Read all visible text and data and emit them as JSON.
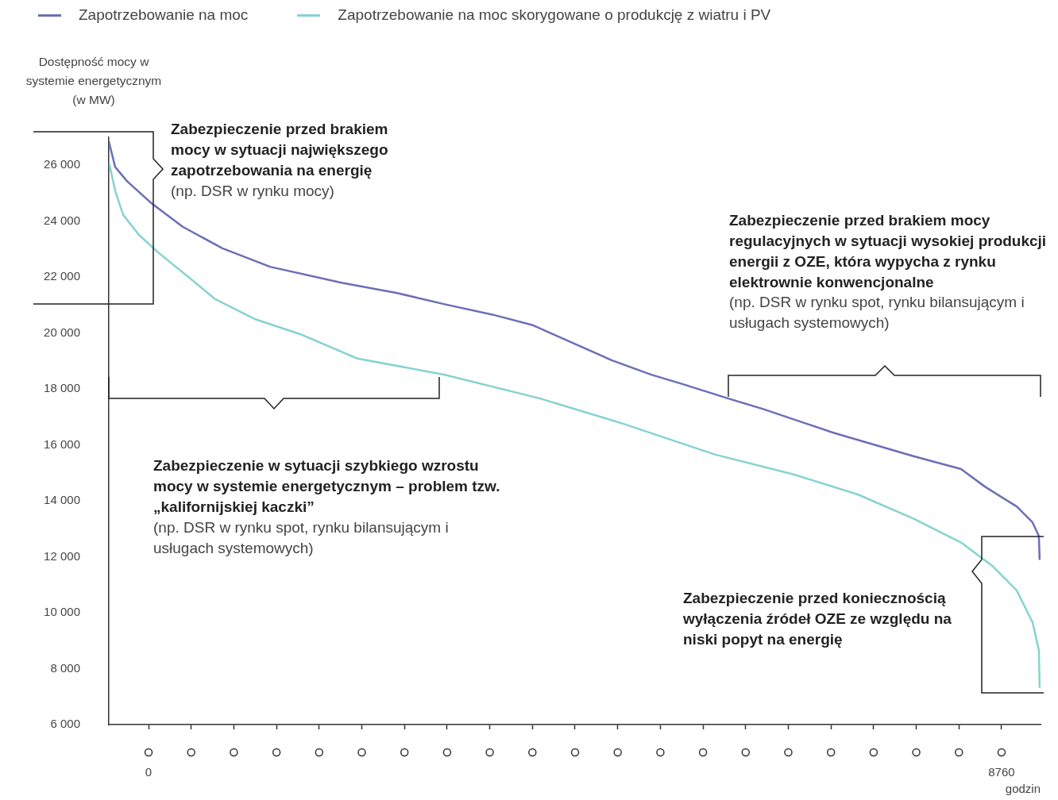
{
  "chart_data": {
    "type": "line",
    "ylabel": "Dostępność mocy w systemie energetycznym (w MW)",
    "xlabel": "godzin",
    "legend": "top left",
    "xlim": [
      -408,
      9160
    ],
    "ylim": [
      6000,
      27000
    ],
    "xticks": [
      0,
      {
        "value": 438,
        "label": null
      },
      {
        "value": 876,
        "label": null
      },
      {
        "value": 1314,
        "label": null
      },
      {
        "value": 1752,
        "label": null
      },
      {
        "value": 2190,
        "label": null
      },
      {
        "value": 2628,
        "label": null
      },
      {
        "value": 3066,
        "label": null
      },
      {
        "value": 3504,
        "label": null
      },
      {
        "value": 3942,
        "label": null
      },
      {
        "value": 4380,
        "label": null
      },
      {
        "value": 4818,
        "label": null
      },
      {
        "value": 5256,
        "label": null
      },
      {
        "value": 5694,
        "label": null
      },
      {
        "value": 6132,
        "label": null
      },
      {
        "value": 6570,
        "label": null
      },
      {
        "value": 7008,
        "label": null
      },
      {
        "value": 7446,
        "label": null
      },
      {
        "value": 7884,
        "label": null
      },
      {
        "value": 8322,
        "label": null
      },
      8760
    ],
    "yticks": [
      {
        "value": 6000,
        "label": "6 000"
      },
      {
        "value": 8000,
        "label": "8 000"
      },
      {
        "value": 10000,
        "label": "10 000"
      },
      {
        "value": 12000,
        "label": "12 000"
      },
      {
        "value": 14000,
        "label": "14 000"
      },
      {
        "value": 16000,
        "label": "16 000"
      },
      {
        "value": 18000,
        "label": "18 000"
      },
      {
        "value": 20000,
        "label": "20 000"
      },
      {
        "value": 22000,
        "label": "22 000"
      },
      {
        "value": 24000,
        "label": "24 000"
      },
      {
        "value": 26000,
        "label": "26 000"
      }
    ],
    "series": [
      {
        "name": "Zapotrzebowanie na moc",
        "color": "#6b6fb6",
        "x": [
          -408,
          -343,
          -220,
          24,
          351,
          759,
          1248,
          1982,
          2553,
          3042,
          3532,
          3939,
          4347,
          4755,
          5163,
          5489,
          5954,
          6305,
          7039,
          7854,
          8344,
          8588,
          8915,
          9078,
          9143,
          9151
        ],
        "values": [
          26860,
          25940,
          25430,
          24660,
          23800,
          23030,
          22370,
          21800,
          21430,
          21030,
          20660,
          20290,
          19660,
          19030,
          18510,
          18170,
          17660,
          17290,
          16430,
          15600,
          15140,
          14510,
          13800,
          13230,
          12740,
          11890
        ]
      },
      {
        "name": "Zapotrzebowanie na moc skorygowane o produkcję z wiatru i PV",
        "color": "#86d3d0",
        "x": [
          -408,
          -343,
          -261,
          -98,
          106,
          432,
          677,
          1085,
          1574,
          2145,
          3042,
          4021,
          4836,
          5815,
          6631,
          7283,
          7854,
          8344,
          8670,
          8915,
          9078,
          9143,
          9151
        ],
        "values": [
          26140,
          25090,
          24230,
          23510,
          22860,
          21940,
          21230,
          20510,
          19940,
          19090,
          18510,
          17660,
          16800,
          15660,
          14940,
          14230,
          13370,
          12510,
          11660,
          10800,
          9660,
          8660,
          7310
        ]
      }
    ],
    "annotations": [
      "Zabezpieczenie przed brakiem mocy w sytuacji największego zapotrzebowania na energię",
      "(np. DSR w rynku mocy)",
      "Zabezpieczenie przed brakiem mocy regulacyjnych w sytuacji wysokiej produkcji energii z OZE, która wypycha z rynku elektrownie konwencjonalne",
      "(np. DSR w rynku spot, rynku bilansującym i usługach systemowych)",
      "Zabezpieczenie w sytuacji szybkiego wzrostu mocy w systemie energetycznym – problem tzw. „kalifornijskiej kaczki”",
      "(np. DSR w rynku spot, rynku bilansującym i usługach systemowych)",
      "Zabezpieczenie przed koniecznością wyłączenia źródeł OZE ze względu na niski popyt na energię"
    ]
  }
}
